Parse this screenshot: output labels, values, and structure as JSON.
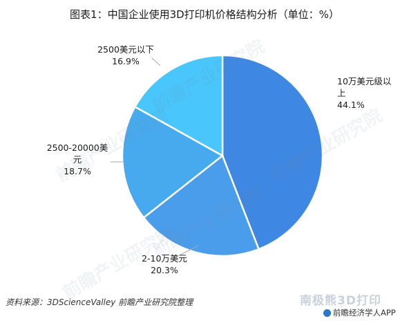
{
  "title": "图表1：中国企业使用3D打印机价格结构分析（单位：%）",
  "source": "资料来源：3DScienceValley 前瞻产业研究院整理",
  "brand_watermark": "南极熊3D打印",
  "app_badge": "前瞻经济学人APP",
  "watermark_text": "前瞻产业研究院",
  "colors": {
    "slice_1": "#3e87e3",
    "slice_2": "#4a9deb",
    "slice_3": "#47aaee",
    "slice_4": "#49c6fb",
    "slice_stroke": "#ffffff",
    "leader_line": "#a6a6a6"
  },
  "chart_data": {
    "type": "pie",
    "title": "图表1：中国企业使用3D打印机价格结构分析（单位：%）",
    "slices": [
      {
        "label_lines": [
          "10万美元级以",
          "上"
        ],
        "value": 44.1,
        "value_label": "44.1%"
      },
      {
        "label_lines": [
          "2-10万美元"
        ],
        "value": 20.3,
        "value_label": "20.3%"
      },
      {
        "label_lines": [
          "2500-20000美",
          "元"
        ],
        "value": 18.7,
        "value_label": "18.7%"
      },
      {
        "label_lines": [
          "2500美元以下"
        ],
        "value": 16.9,
        "value_label": "16.9%"
      }
    ],
    "start": "12 o'clock",
    "direction": "clockwise",
    "legend": "none"
  }
}
